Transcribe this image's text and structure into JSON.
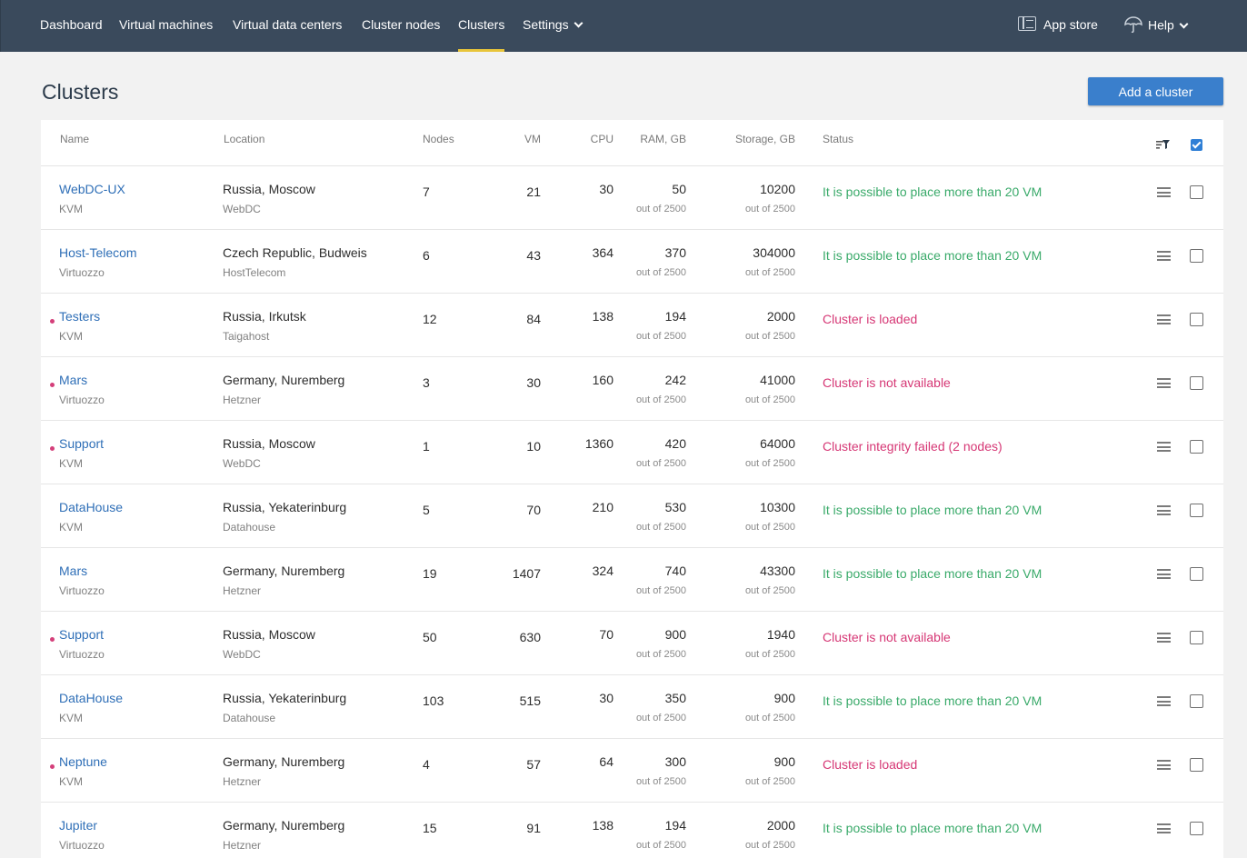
{
  "nav": {
    "items": [
      "Dashboard",
      "Virtual machines",
      "Virtual data centers",
      "Cluster nodes",
      "Clusters",
      "Settings"
    ],
    "active": "Clusters",
    "app_store": "App store",
    "help": "Help"
  },
  "page": {
    "title": "Clusters",
    "add_button": "Add a cluster"
  },
  "table": {
    "columns": {
      "name": "Name",
      "location": "Location",
      "nodes": "Nodes",
      "vm": "VM",
      "cpu": "CPU",
      "ram": "RAM, GB",
      "storage": "Storage, GB",
      "status": "Status"
    },
    "rows": [
      {
        "name": "WebDC-UX",
        "type": "KVM",
        "location": "Russia, Moscow",
        "provider": "WebDC",
        "nodes": "7",
        "vm": "21",
        "cpu": "30",
        "ram": "50",
        "ram_total": "out of 2500",
        "storage": "10200",
        "storage_total": "out of 2500",
        "status": "It is possible to place more than 20 VM",
        "status_kind": "ok",
        "flag": false
      },
      {
        "name": "Host-Telecom",
        "type": "Virtuozzo",
        "location": "Czech Republic, Budweis",
        "provider": "HostTelecom",
        "nodes": "6",
        "vm": "43",
        "cpu": "364",
        "ram": "370",
        "ram_total": "out of 2500",
        "storage": "304000",
        "storage_total": "out of 2500",
        "status": "It is possible to place more than 20 VM",
        "status_kind": "ok",
        "flag": false
      },
      {
        "name": "Testers",
        "type": "KVM",
        "location": "Russia, Irkutsk",
        "provider": "Taigahost",
        "nodes": "12",
        "vm": "84",
        "cpu": "138",
        "ram": "194",
        "ram_total": "out of 2500",
        "storage": "2000",
        "storage_total": "out of 2500",
        "status": "Cluster is loaded",
        "status_kind": "bad",
        "flag": true
      },
      {
        "name": "Mars",
        "type": "Virtuozzo",
        "location": "Germany, Nuremberg",
        "provider": "Hetzner",
        "nodes": "3",
        "vm": "30",
        "cpu": "160",
        "ram": "242",
        "ram_total": "out of 2500",
        "storage": "41000",
        "storage_total": "out of 2500",
        "status": "Cluster is not available",
        "status_kind": "bad",
        "flag": true
      },
      {
        "name": "Support",
        "type": "KVM",
        "location": "Russia, Moscow",
        "provider": "WebDC",
        "nodes": "1",
        "vm": "10",
        "cpu": "1360",
        "ram": "420",
        "ram_total": "out of 2500",
        "storage": "64000",
        "storage_total": "out of 2500",
        "status": "Cluster integrity failed (2 nodes)",
        "status_kind": "bad",
        "flag": true
      },
      {
        "name": "DataHouse",
        "type": "KVM",
        "location": "Russia, Yekaterinburg",
        "provider": "Datahouse",
        "nodes": "5",
        "vm": "70",
        "cpu": "210",
        "ram": "530",
        "ram_total": "out of 2500",
        "storage": "10300",
        "storage_total": "out of 2500",
        "status": "It is possible to place more than 20 VM",
        "status_kind": "ok",
        "flag": false
      },
      {
        "name": "Mars",
        "type": "Virtuozzo",
        "location": "Germany, Nuremberg",
        "provider": "Hetzner",
        "nodes": "19",
        "vm": "1407",
        "cpu": "324",
        "ram": "740",
        "ram_total": "out of 2500",
        "storage": "43300",
        "storage_total": "out of 2500",
        "status": "It is possible to place more than 20 VM",
        "status_kind": "ok",
        "flag": false
      },
      {
        "name": "Support",
        "type": "Virtuozzo",
        "location": "Russia, Moscow",
        "provider": "WebDC",
        "nodes": "50",
        "vm": "630",
        "cpu": "70",
        "ram": "900",
        "ram_total": "out of 2500",
        "storage": "1940",
        "storage_total": "out of 2500",
        "status": "Cluster is not available",
        "status_kind": "bad",
        "flag": true
      },
      {
        "name": "DataHouse",
        "type": "KVM",
        "location": "Russia, Yekaterinburg",
        "provider": "Datahouse",
        "nodes": "103",
        "vm": "515",
        "cpu": "30",
        "ram": "350",
        "ram_total": "out of 2500",
        "storage": "900",
        "storage_total": "out of 2500",
        "status": "It is possible to place more than 20 VM",
        "status_kind": "ok",
        "flag": false
      },
      {
        "name": "Neptune",
        "type": "KVM",
        "location": "Germany, Nuremberg",
        "provider": "Hetzner",
        "nodes": "4",
        "vm": "57",
        "cpu": "64",
        "ram": "300",
        "ram_total": "out of 2500",
        "storage": "900",
        "storage_total": "out of 2500",
        "status": "Cluster is loaded",
        "status_kind": "bad",
        "flag": true
      },
      {
        "name": "Jupiter",
        "type": "Virtuozzo",
        "location": "Germany, Nuremberg",
        "provider": "Hetzner",
        "nodes": "15",
        "vm": "91",
        "cpu": "138",
        "ram": "194",
        "ram_total": "out of 2500",
        "storage": "2000",
        "storage_total": "out of 2500",
        "status": "It is possible to place more than 20 VM",
        "status_kind": "ok",
        "flag": false
      }
    ]
  },
  "colors": {
    "nav_bg": "#3a4a5c",
    "accent": "#e8c53a",
    "primary": "#3a7fcc",
    "link": "#2f6fb7",
    "status_ok": "#3aaa6a",
    "status_bad": "#d63775"
  }
}
